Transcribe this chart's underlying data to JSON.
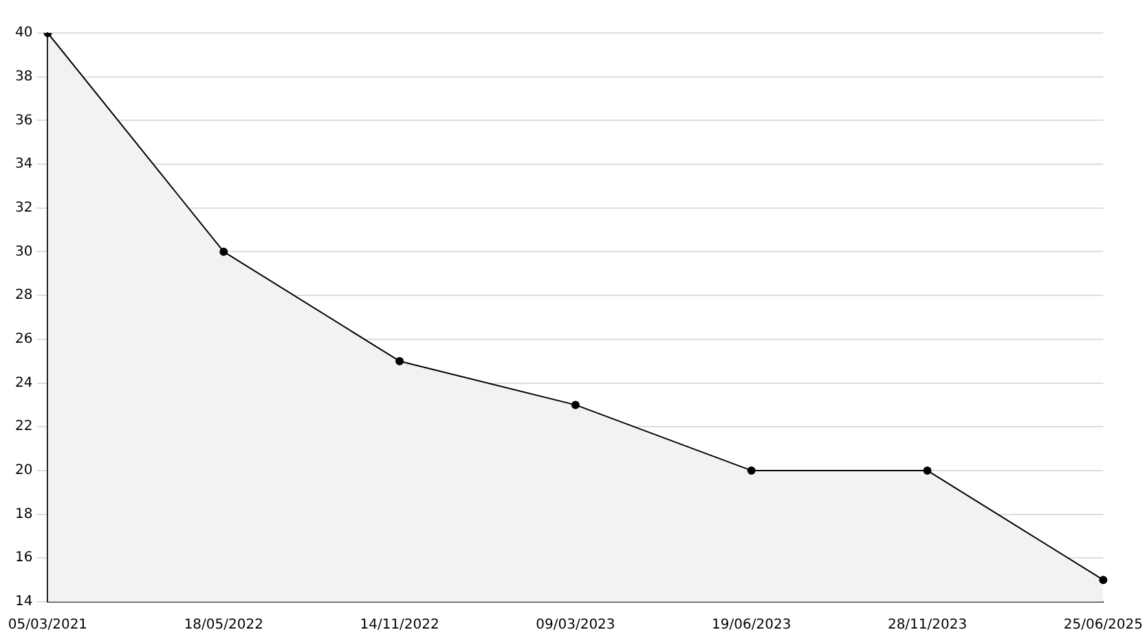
{
  "chart_data": {
    "type": "area",
    "categories": [
      "05/03/2021",
      "18/05/2022",
      "14/11/2022",
      "09/03/2023",
      "19/06/2023",
      "28/11/2023",
      "25/06/2025"
    ],
    "series": [
      {
        "color": "#000000",
        "values": [
          40,
          30,
          25,
          23,
          20,
          20,
          15
        ]
      }
    ],
    "ylim": [
      14,
      40
    ],
    "yticks": [
      14,
      16,
      18,
      20,
      22,
      24,
      26,
      28,
      30,
      32,
      34,
      36,
      38,
      40
    ],
    "grid": "y",
    "marker": "circle",
    "line_style": "solid"
  }
}
